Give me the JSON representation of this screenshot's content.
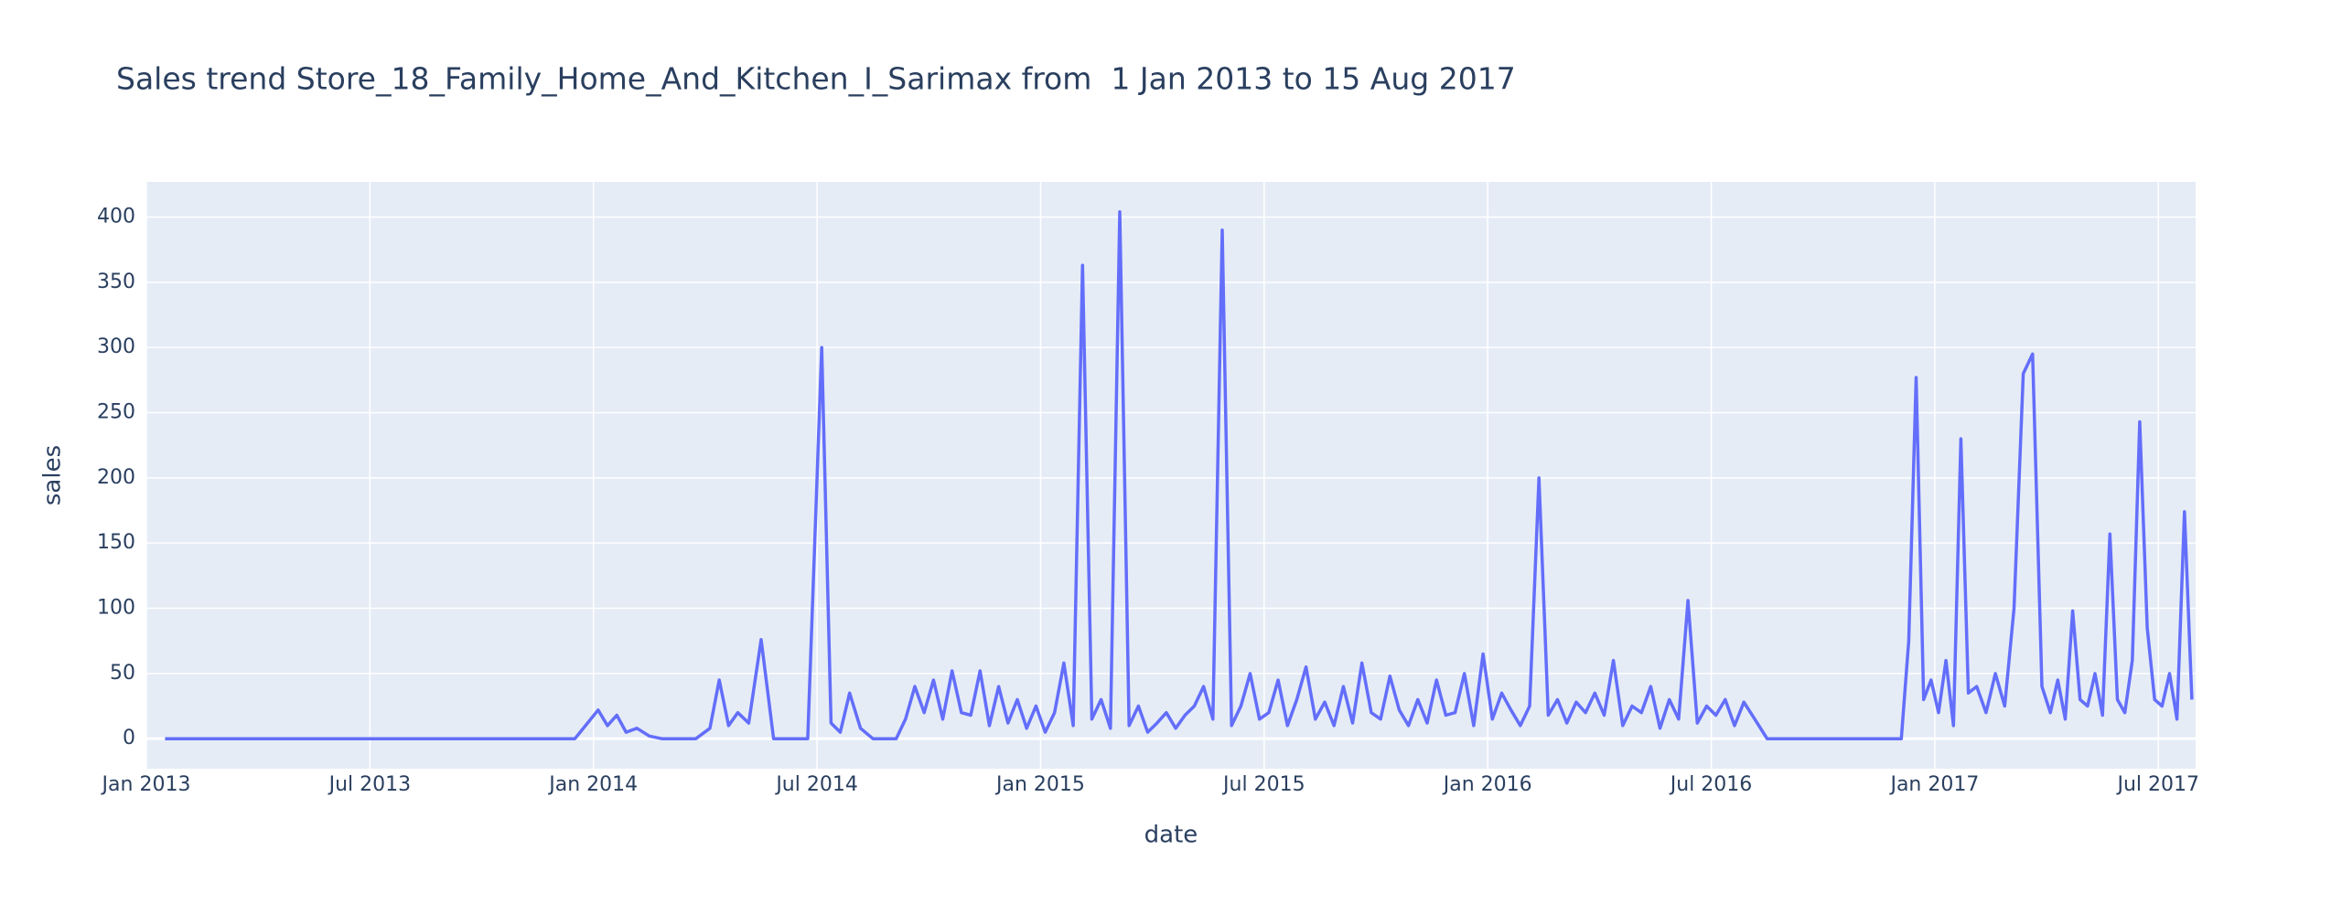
{
  "chart_data": {
    "type": "line",
    "title": "Sales trend Store_18_Family_Home_And_Kitchen_I_Sarimax from  1 Jan 2013 to 15 Aug 2017",
    "x_label": "date",
    "y_label": "sales",
    "x": [
      "2013-01",
      "2013-02",
      "2013-03",
      "2013-04",
      "2013-05",
      "2013-06",
      "2013-07",
      "2013-08",
      "2013-09",
      "2013-10",
      "2013-11",
      "2013-12",
      "2014-01",
      "2014-01",
      "2014-01",
      "2014-01",
      "2014-02",
      "2014-02",
      "2014-02",
      "2014-03",
      "2014-03",
      "2014-04",
      "2014-04",
      "2014-04",
      "2014-04",
      "2014-05",
      "2014-05",
      "2014-05",
      "2014-06",
      "2014-06",
      "2014-07",
      "2014-07",
      "2014-07",
      "2014-07",
      "2014-08",
      "2014-08",
      "2014-08",
      "2014-09",
      "2014-09",
      "2014-09",
      "2014-09",
      "2014-10",
      "2014-10",
      "2014-10",
      "2014-10",
      "2014-11",
      "2014-11",
      "2014-11",
      "2014-11",
      "2014-12",
      "2014-12",
      "2014-12",
      "2014-12",
      "2015-01",
      "2015-01",
      "2015-01",
      "2015-01",
      "2015-02",
      "2015-02",
      "2015-02",
      "2015-02",
      "2015-03",
      "2015-03",
      "2015-03",
      "2015-03",
      "2015-04",
      "2015-04",
      "2015-04",
      "2015-04",
      "2015-05",
      "2015-05",
      "2015-05",
      "2015-05",
      "2015-06",
      "2015-06",
      "2015-06",
      "2015-06",
      "2015-07",
      "2015-07",
      "2015-07",
      "2015-07",
      "2015-08",
      "2015-08",
      "2015-08",
      "2015-08",
      "2015-09",
      "2015-09",
      "2015-09",
      "2015-09",
      "2015-10",
      "2015-10",
      "2015-10",
      "2015-10",
      "2015-11",
      "2015-11",
      "2015-11",
      "2015-11",
      "2015-12",
      "2015-12",
      "2015-12",
      "2015-12",
      "2016-01",
      "2016-01",
      "2016-01",
      "2016-01",
      "2016-02",
      "2016-02",
      "2016-02",
      "2016-02",
      "2016-03",
      "2016-03",
      "2016-03",
      "2016-03",
      "2016-04",
      "2016-04",
      "2016-04",
      "2016-04",
      "2016-05",
      "2016-05",
      "2016-05",
      "2016-05",
      "2016-06",
      "2016-06",
      "2016-06",
      "2016-06",
      "2016-07",
      "2016-07",
      "2016-07",
      "2016-07",
      "2016-08",
      "2016-08",
      "2016-08",
      "2016-09",
      "2016-09",
      "2016-10",
      "2016-10",
      "2016-11",
      "2016-11",
      "2016-12",
      "2016-12",
      "2016-12",
      "2016-12",
      "2016-12",
      "2017-01",
      "2017-01",
      "2017-01",
      "2017-01",
      "2017-01",
      "2017-02",
      "2017-02",
      "2017-02",
      "2017-02",
      "2017-03",
      "2017-03",
      "2017-03",
      "2017-03",
      "2017-04",
      "2017-04",
      "2017-04",
      "2017-04",
      "2017-04",
      "2017-05",
      "2017-05",
      "2017-05",
      "2017-05",
      "2017-05",
      "2017-06",
      "2017-06",
      "2017-06",
      "2017-06",
      "2017-06",
      "2017-07",
      "2017-07",
      "2017-07",
      "2017-07",
      "2017-07"
    ],
    "series": [
      {
        "name": "sales",
        "color": "#636efa",
        "values": [
          0,
          0,
          0,
          0,
          0,
          0,
          0,
          0,
          0,
          0,
          0,
          0,
          22,
          10,
          18,
          5,
          8,
          2,
          0,
          0,
          0,
          8,
          45,
          10,
          20,
          12,
          76,
          0,
          0,
          0,
          300,
          12,
          5,
          35,
          8,
          0,
          0,
          0,
          15,
          40,
          20,
          45,
          15,
          52,
          20,
          18,
          52,
          10,
          40,
          12,
          30,
          8,
          25,
          5,
          20,
          58,
          10,
          363,
          15,
          30,
          8,
          404,
          10,
          25,
          5,
          12,
          20,
          8,
          18,
          25,
          40,
          15,
          390,
          10,
          25,
          50,
          15,
          20,
          45,
          10,
          30,
          55,
          15,
          28,
          10,
          40,
          12,
          58,
          20,
          15,
          48,
          22,
          10,
          30,
          12,
          45,
          18,
          20,
          50,
          10,
          65,
          15,
          35,
          22,
          10,
          25,
          200,
          18,
          30,
          12,
          28,
          20,
          35,
          18,
          60,
          10,
          25,
          20,
          40,
          8,
          30,
          15,
          106,
          12,
          25,
          18,
          30,
          10,
          28,
          15,
          0,
          0,
          0,
          0,
          0,
          0,
          0,
          0,
          0,
          75,
          277,
          30,
          45,
          20,
          60,
          10,
          230,
          35,
          40,
          20,
          50,
          25,
          100,
          280,
          295,
          40,
          20,
          45,
          15,
          98,
          30,
          25,
          50,
          18,
          157,
          30,
          20,
          60,
          243,
          85,
          30,
          25,
          50,
          15,
          174,
          30
        ]
      }
    ],
    "xlim": [
      "2013-01",
      "2017-08"
    ],
    "xticks": [
      {
        "value": "2013-01",
        "label": "Jan 2013"
      },
      {
        "value": "2013-07",
        "label": "Jul 2013"
      },
      {
        "value": "2014-01",
        "label": "Jan 2014"
      },
      {
        "value": "2014-07",
        "label": "Jul 2014"
      },
      {
        "value": "2015-01",
        "label": "Jan 2015"
      },
      {
        "value": "2015-07",
        "label": "Jul 2015"
      },
      {
        "value": "2016-01",
        "label": "Jan 2016"
      },
      {
        "value": "2016-07",
        "label": "Jul 2016"
      },
      {
        "value": "2017-01",
        "label": "Jan 2017"
      },
      {
        "value": "2017-07",
        "label": "Jul 2017"
      }
    ],
    "ylim": [
      -23,
      427
    ],
    "yticks": [
      0,
      50,
      100,
      150,
      200,
      250,
      300,
      350,
      400
    ],
    "grid": true
  }
}
